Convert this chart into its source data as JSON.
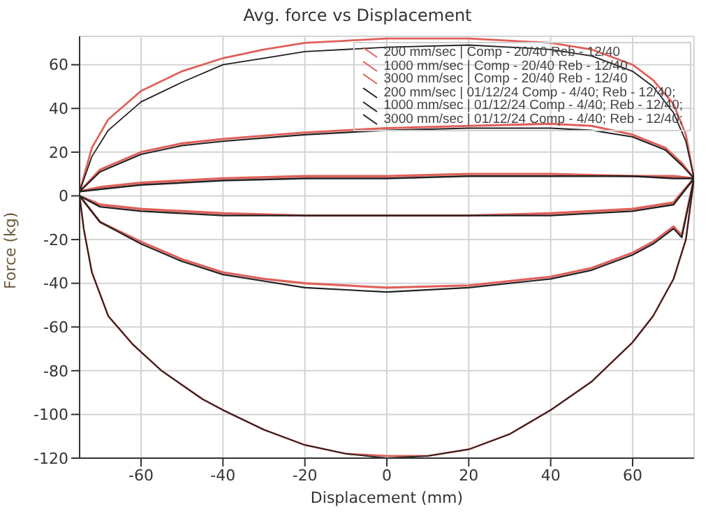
{
  "chart_data": {
    "type": "line",
    "title": "Avg. force vs Displacement",
    "xlabel": "Displacement (mm)",
    "ylabel": "Force (kg)",
    "xlim": [
      -75,
      75
    ],
    "ylim": [
      -120,
      73
    ],
    "xticks": [
      -60,
      -40,
      -20,
      0,
      20,
      40,
      60
    ],
    "yticks": [
      -120,
      -100,
      -80,
      -60,
      -40,
      -20,
      0,
      20,
      40,
      60
    ],
    "grid": true,
    "legend": "top right",
    "marker": "none",
    "line_style": "solid",
    "series": [
      {
        "name": "200 mm/sec | Comp - 20/40 Reb - 12/40",
        "color": "#e0605a",
        "x": [
          -75,
          -70,
          -60,
          -40,
          -20,
          0,
          20,
          40,
          60,
          70,
          75,
          70,
          60,
          40,
          20,
          0,
          -20,
          -40,
          -60,
          -70,
          -75
        ],
        "values": [
          2,
          4,
          6,
          8,
          9,
          9,
          10,
          10,
          9,
          9,
          8,
          -3,
          -6,
          -8,
          -9,
          -9,
          -9,
          -8,
          -6,
          -4,
          0
        ]
      },
      {
        "name": "1000 mm/sec | Comp - 20/40 Reb - 12/40",
        "color": "#e0605a",
        "x": [
          -75,
          -70,
          -60,
          -50,
          -40,
          -20,
          0,
          20,
          40,
          50,
          60,
          68,
          72,
          75,
          72,
          70,
          65,
          60,
          50,
          40,
          20,
          0,
          -20,
          -30,
          -40,
          -50,
          -60,
          -70,
          -75
        ],
        "values": [
          2,
          12,
          20,
          24,
          26,
          29,
          31,
          32,
          33,
          32,
          28,
          22,
          15,
          8,
          -18,
          -14,
          -21,
          -26,
          -33,
          -37,
          -41,
          -42,
          -40,
          -38,
          -35,
          -29,
          -21,
          -12,
          0
        ]
      },
      {
        "name": "3000 mm/sec | Comp - 20/40 Reb - 12/40",
        "color": "#e0605a",
        "x": [
          -75,
          -72,
          -68,
          -60,
          -50,
          -40,
          -30,
          -20,
          -10,
          0,
          20,
          40,
          50,
          60,
          65,
          70,
          73,
          75,
          73,
          70,
          65,
          60,
          50,
          40,
          30,
          20,
          10,
          0,
          -10,
          -20,
          -30,
          -40,
          -45,
          -55,
          -62,
          -68,
          -72,
          -74,
          -75
        ],
        "values": [
          2,
          22,
          35,
          48,
          57,
          63,
          67,
          70,
          71,
          72,
          72,
          70,
          67,
          60,
          53,
          42,
          28,
          8,
          -20,
          -38,
          -55,
          -67,
          -85,
          -98,
          -109,
          -116,
          -119,
          -119,
          -118,
          -114,
          -107,
          -98,
          -93,
          -80,
          -68,
          -55,
          -35,
          -15,
          0
        ]
      },
      {
        "name": "200 mm/sec | 01/12/24 Comp - 4/40; Reb - 12/40;",
        "color": "#202020",
        "x": [
          -75,
          -70,
          -60,
          -40,
          -20,
          0,
          20,
          40,
          60,
          70,
          75,
          70,
          60,
          40,
          20,
          0,
          -20,
          -40,
          -60,
          -70,
          -75
        ],
        "values": [
          2,
          3,
          5,
          7,
          8,
          8,
          9,
          9,
          9,
          8,
          8,
          -4,
          -7,
          -9,
          -9,
          -9,
          -9,
          -9,
          -7,
          -5,
          0
        ]
      },
      {
        "name": "1000 mm/sec | 01/12/24 Comp - 4/40; Reb - 12/40;",
        "color": "#202020",
        "x": [
          -75,
          -70,
          -60,
          -50,
          -40,
          -20,
          0,
          20,
          40,
          50,
          60,
          68,
          72,
          75,
          72,
          70,
          65,
          60,
          50,
          40,
          20,
          0,
          -20,
          -30,
          -40,
          -50,
          -60,
          -70,
          -75
        ],
        "values": [
          2,
          11,
          19,
          23,
          25,
          28,
          30,
          31,
          31,
          30,
          27,
          21,
          14,
          8,
          -19,
          -15,
          -22,
          -27,
          -34,
          -38,
          -42,
          -44,
          -42,
          -39,
          -36,
          -30,
          -22,
          -12,
          0
        ]
      },
      {
        "name": "3000 mm/sec | 01/12/24 Comp - 4/40; Reb - 12/40;",
        "color": "#202020",
        "x": [
          -75,
          -72,
          -68,
          -60,
          -50,
          -40,
          -30,
          -20,
          0,
          20,
          40,
          50,
          60,
          65,
          70,
          73,
          75,
          73,
          70,
          65,
          60,
          50,
          40,
          30,
          20,
          10,
          0,
          -10,
          -20,
          -30,
          -40,
          -45,
          -55,
          -62,
          -68,
          -72,
          -74,
          -75
        ],
        "values": [
          2,
          18,
          30,
          43,
          52,
          60,
          63,
          66,
          68,
          69,
          67,
          64,
          57,
          50,
          38,
          25,
          8,
          -20,
          -38,
          -55,
          -67,
          -85,
          -98,
          -109,
          -116,
          -119,
          -120,
          -118,
          -114,
          -107,
          -98,
          -93,
          -80,
          -68,
          -55,
          -35,
          -15,
          0
        ]
      }
    ]
  }
}
